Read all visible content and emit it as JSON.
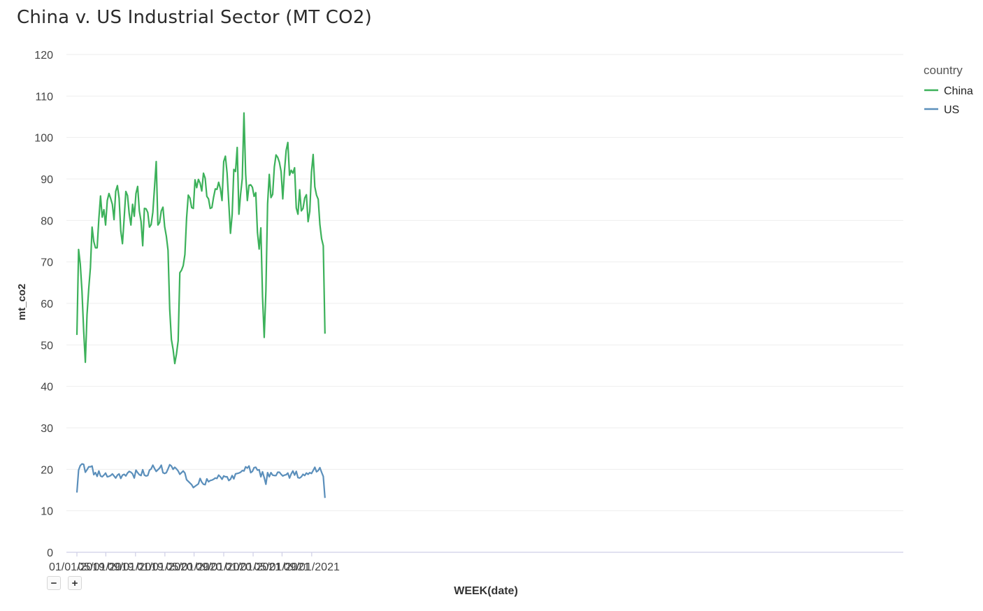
{
  "chart_data": {
    "type": "line",
    "title": "China v. US Industrial Sector (MT CO2)",
    "xlabel": "WEEK(date)",
    "ylabel": "mt_co2",
    "ylim": [
      0,
      120
    ],
    "yticks": [
      0,
      10,
      20,
      30,
      40,
      50,
      60,
      70,
      80,
      90,
      100,
      110,
      120
    ],
    "xlim": [
      "2019-01-01",
      "2021-11-15"
    ],
    "xticks": [
      "01/01/2019",
      "05/01/2019",
      "09/01/2019",
      "01/01/2020",
      "05/01/2020",
      "09/01/2020",
      "01/01/2021",
      "05/01/2021",
      "09/01/2021"
    ],
    "xtick_dates": [
      "2019-01-01",
      "2019-05-01",
      "2019-09-01",
      "2020-01-01",
      "2020-05-01",
      "2020-09-01",
      "2021-01-01",
      "2021-05-01",
      "2021-09-01"
    ],
    "grid": true,
    "legend": {
      "title": "country",
      "position": "top-right"
    },
    "x_start": "2019-01-01",
    "x_interval": "weekly",
    "series": [
      {
        "name": "China",
        "color": "#3cb15a",
        "values": [
          52.4,
          73.0,
          69.5,
          63.0,
          53.5,
          45.8,
          57.3,
          63.5,
          68.6,
          78.4,
          74.9,
          73.4,
          73.4,
          80.4,
          85.9,
          80.8,
          82.6,
          78.9,
          84.8,
          86.5,
          85.3,
          83.9,
          80.2,
          87.0,
          88.4,
          85.4,
          77.5,
          74.4,
          80.5,
          87.0,
          86.0,
          81.6,
          78.9,
          83.9,
          81.0,
          86.5,
          88.2,
          82.3,
          79.8,
          73.9,
          82.9,
          82.8,
          81.9,
          78.4,
          79.0,
          82.0,
          88.0,
          94.2,
          78.9,
          79.5,
          82.3,
          83.2,
          78.5,
          76.2,
          72.8,
          58.6,
          51.3,
          48.9,
          45.5,
          47.8,
          51.0,
          67.4,
          68.0,
          69.1,
          71.8,
          80.6,
          86.1,
          85.4,
          83.1,
          82.9,
          89.8,
          87.9,
          89.9,
          89.0,
          87.1,
          91.4,
          90.2,
          85.8,
          85.2,
          82.9,
          83.1,
          85.6,
          87.6,
          87.5,
          89.2,
          87.7,
          84.8,
          94.2,
          95.5,
          91.4,
          84.2,
          76.9,
          81.4,
          92.3,
          91.8,
          97.6,
          81.5,
          86.3,
          90.1,
          105.9,
          91.2,
          84.8,
          88.5,
          88.6,
          88.0,
          85.8,
          86.7,
          77.1,
          73.1,
          78.2,
          61.6,
          51.8,
          63.0,
          84.0,
          91.1,
          85.5,
          86.3,
          92.9,
          95.8,
          95.2,
          94.0,
          91.8,
          85.2,
          91.9,
          96.9,
          98.8,
          90.9,
          92.1,
          91.4,
          92.7,
          83.0,
          81.5,
          87.4,
          82.3,
          82.9,
          85.4,
          86.2,
          79.7,
          82.2,
          91.6,
          95.9,
          88.1,
          86.1,
          85.1,
          79.0,
          75.6,
          73.9,
          52.7
        ]
      },
      {
        "name": "US",
        "color": "#5b8fbb",
        "values": [
          14.4,
          19.8,
          20.9,
          21.3,
          21.2,
          19.3,
          19.9,
          20.6,
          20.6,
          20.8,
          18.7,
          19.2,
          18.3,
          19.6,
          18.4,
          18.2,
          18.6,
          19.1,
          18.2,
          18.3,
          18.5,
          18.9,
          18.4,
          17.9,
          18.6,
          18.9,
          17.8,
          18.6,
          18.8,
          18.4,
          19.1,
          19.5,
          19.3,
          18.9,
          17.9,
          19.8,
          19.2,
          18.7,
          18.5,
          19.9,
          18.6,
          18.4,
          18.5,
          19.8,
          20.1,
          21.0,
          20.2,
          19.5,
          19.9,
          20.3,
          21.0,
          19.2,
          19.0,
          19.2,
          20.1,
          21.1,
          20.8,
          20.0,
          20.5,
          20.1,
          19.6,
          18.8,
          19.2,
          19.6,
          19.1,
          17.5,
          17.1,
          16.7,
          16.3,
          15.6,
          15.9,
          16.2,
          16.5,
          17.8,
          16.9,
          16.4,
          16.3,
          17.7,
          17.0,
          17.3,
          17.4,
          17.6,
          17.9,
          17.8,
          18.6,
          18.2,
          17.6,
          18.4,
          18.2,
          18.2,
          17.3,
          17.6,
          18.5,
          17.7,
          18.9,
          19.0,
          19.1,
          19.3,
          19.7,
          19.6,
          20.6,
          20.3,
          20.8,
          19.2,
          19.5,
          20.4,
          20.5,
          19.8,
          19.9,
          18.2,
          19.4,
          18.0,
          16.4,
          19.2,
          18.2,
          19.2,
          18.6,
          18.5,
          18.5,
          19.3,
          19.3,
          18.8,
          18.4,
          18.6,
          18.7,
          19.1,
          17.9,
          18.9,
          19.6,
          18.6,
          19.5,
          18.0,
          17.9,
          18.2,
          18.8,
          18.5,
          19.1,
          18.8,
          19.2,
          19.0,
          19.7,
          20.5,
          19.4,
          19.7,
          20.4,
          19.3,
          18.3,
          13.1
        ]
      }
    ]
  },
  "controls": {
    "zoom_out": "−",
    "zoom_in": "+"
  }
}
